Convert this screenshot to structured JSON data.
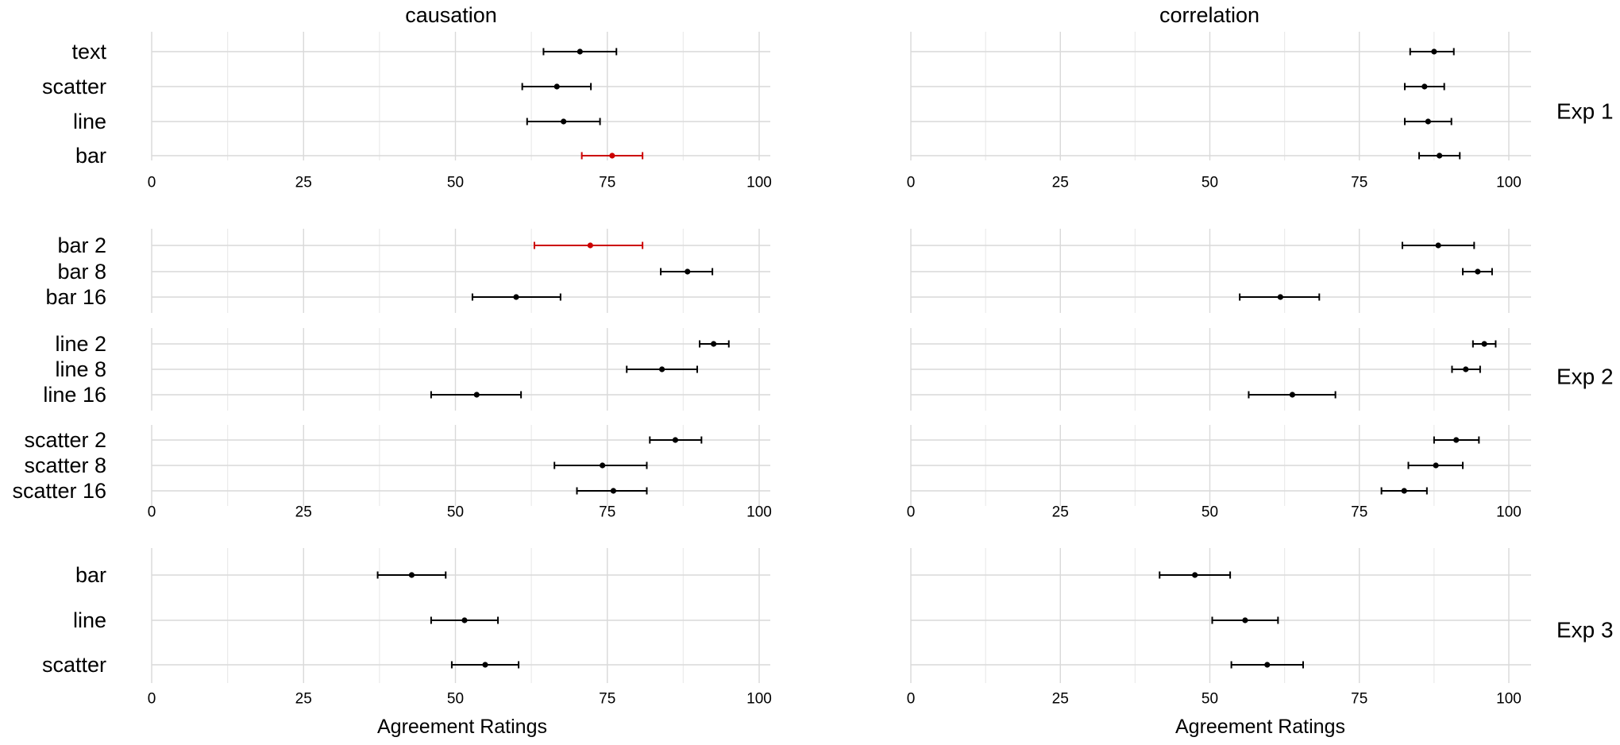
{
  "chart_data": {
    "type": "dot-errorbar",
    "columns": [
      "causation",
      "correlation"
    ],
    "xlabel": "Agreement Ratings",
    "xlim": [
      0,
      100
    ],
    "xticks": [
      0,
      25,
      50,
      75,
      100
    ],
    "grid": true,
    "highlight_color": "#cc0000",
    "default_color": "#000000",
    "experiments": [
      {
        "label": "Exp 1",
        "panels": [
          {
            "categories": [
              "text",
              "scatter",
              "line",
              "bar"
            ],
            "causation": [
              {
                "mean": 70.5,
                "lo": 64.5,
                "hi": 76.5,
                "highlight": false
              },
              {
                "mean": 66.7,
                "lo": 61.0,
                "hi": 72.3,
                "highlight": false
              },
              {
                "mean": 67.8,
                "lo": 61.8,
                "hi": 73.8,
                "highlight": false
              },
              {
                "mean": 75.8,
                "lo": 70.8,
                "hi": 80.8,
                "highlight": true
              }
            ],
            "correlation": [
              {
                "mean": 87.5,
                "lo": 83.5,
                "hi": 90.8,
                "highlight": false
              },
              {
                "mean": 85.9,
                "lo": 82.6,
                "hi": 89.2,
                "highlight": false
              },
              {
                "mean": 86.5,
                "lo": 82.6,
                "hi": 90.4,
                "highlight": false
              },
              {
                "mean": 88.4,
                "lo": 85.0,
                "hi": 91.8,
                "highlight": false
              }
            ]
          }
        ]
      },
      {
        "label": "Exp 2",
        "panels": [
          {
            "categories": [
              "bar 2",
              "bar 8",
              "bar 16"
            ],
            "causation": [
              {
                "mean": 72.2,
                "lo": 63.0,
                "hi": 80.8,
                "highlight": true
              },
              {
                "mean": 88.2,
                "lo": 83.8,
                "hi": 92.3,
                "highlight": false
              },
              {
                "mean": 60.0,
                "lo": 52.8,
                "hi": 67.3,
                "highlight": false
              }
            ],
            "correlation": [
              {
                "mean": 88.2,
                "lo": 82.2,
                "hi": 94.2,
                "highlight": false
              },
              {
                "mean": 94.8,
                "lo": 92.3,
                "hi": 97.2,
                "highlight": false
              },
              {
                "mean": 61.8,
                "lo": 55.0,
                "hi": 68.3,
                "highlight": false
              }
            ]
          },
          {
            "categories": [
              "line 2",
              "line 8",
              "line 16"
            ],
            "causation": [
              {
                "mean": 92.5,
                "lo": 90.2,
                "hi": 95.0,
                "highlight": false
              },
              {
                "mean": 84.0,
                "lo": 78.2,
                "hi": 89.8,
                "highlight": false
              },
              {
                "mean": 53.5,
                "lo": 46.0,
                "hi": 60.8,
                "highlight": false
              }
            ],
            "correlation": [
              {
                "mean": 95.9,
                "lo": 94.0,
                "hi": 97.8,
                "highlight": false
              },
              {
                "mean": 92.8,
                "lo": 90.5,
                "hi": 95.2,
                "highlight": false
              },
              {
                "mean": 63.8,
                "lo": 56.5,
                "hi": 71.0,
                "highlight": false
              }
            ]
          },
          {
            "categories": [
              "scatter 2",
              "scatter 8",
              "scatter 16"
            ],
            "causation": [
              {
                "mean": 86.2,
                "lo": 82.0,
                "hi": 90.5,
                "highlight": false
              },
              {
                "mean": 74.2,
                "lo": 66.3,
                "hi": 81.5,
                "highlight": false
              },
              {
                "mean": 76.0,
                "lo": 70.0,
                "hi": 81.5,
                "highlight": false
              }
            ],
            "correlation": [
              {
                "mean": 91.2,
                "lo": 87.5,
                "hi": 95.0,
                "highlight": false
              },
              {
                "mean": 87.8,
                "lo": 83.2,
                "hi": 92.3,
                "highlight": false
              },
              {
                "mean": 82.5,
                "lo": 78.7,
                "hi": 86.3,
                "highlight": false
              }
            ]
          }
        ]
      },
      {
        "label": "Exp 3",
        "panels": [
          {
            "categories": [
              "bar",
              "line",
              "scatter"
            ],
            "causation": [
              {
                "mean": 42.8,
                "lo": 37.2,
                "hi": 48.4,
                "highlight": false
              },
              {
                "mean": 51.5,
                "lo": 46.0,
                "hi": 57.0,
                "highlight": false
              },
              {
                "mean": 54.9,
                "lo": 49.4,
                "hi": 60.4,
                "highlight": false
              }
            ],
            "correlation": [
              {
                "mean": 47.5,
                "lo": 41.6,
                "hi": 53.4,
                "highlight": false
              },
              {
                "mean": 55.9,
                "lo": 50.4,
                "hi": 61.4,
                "highlight": false
              },
              {
                "mean": 59.6,
                "lo": 53.6,
                "hi": 65.6,
                "highlight": false
              }
            ]
          }
        ]
      }
    ]
  }
}
